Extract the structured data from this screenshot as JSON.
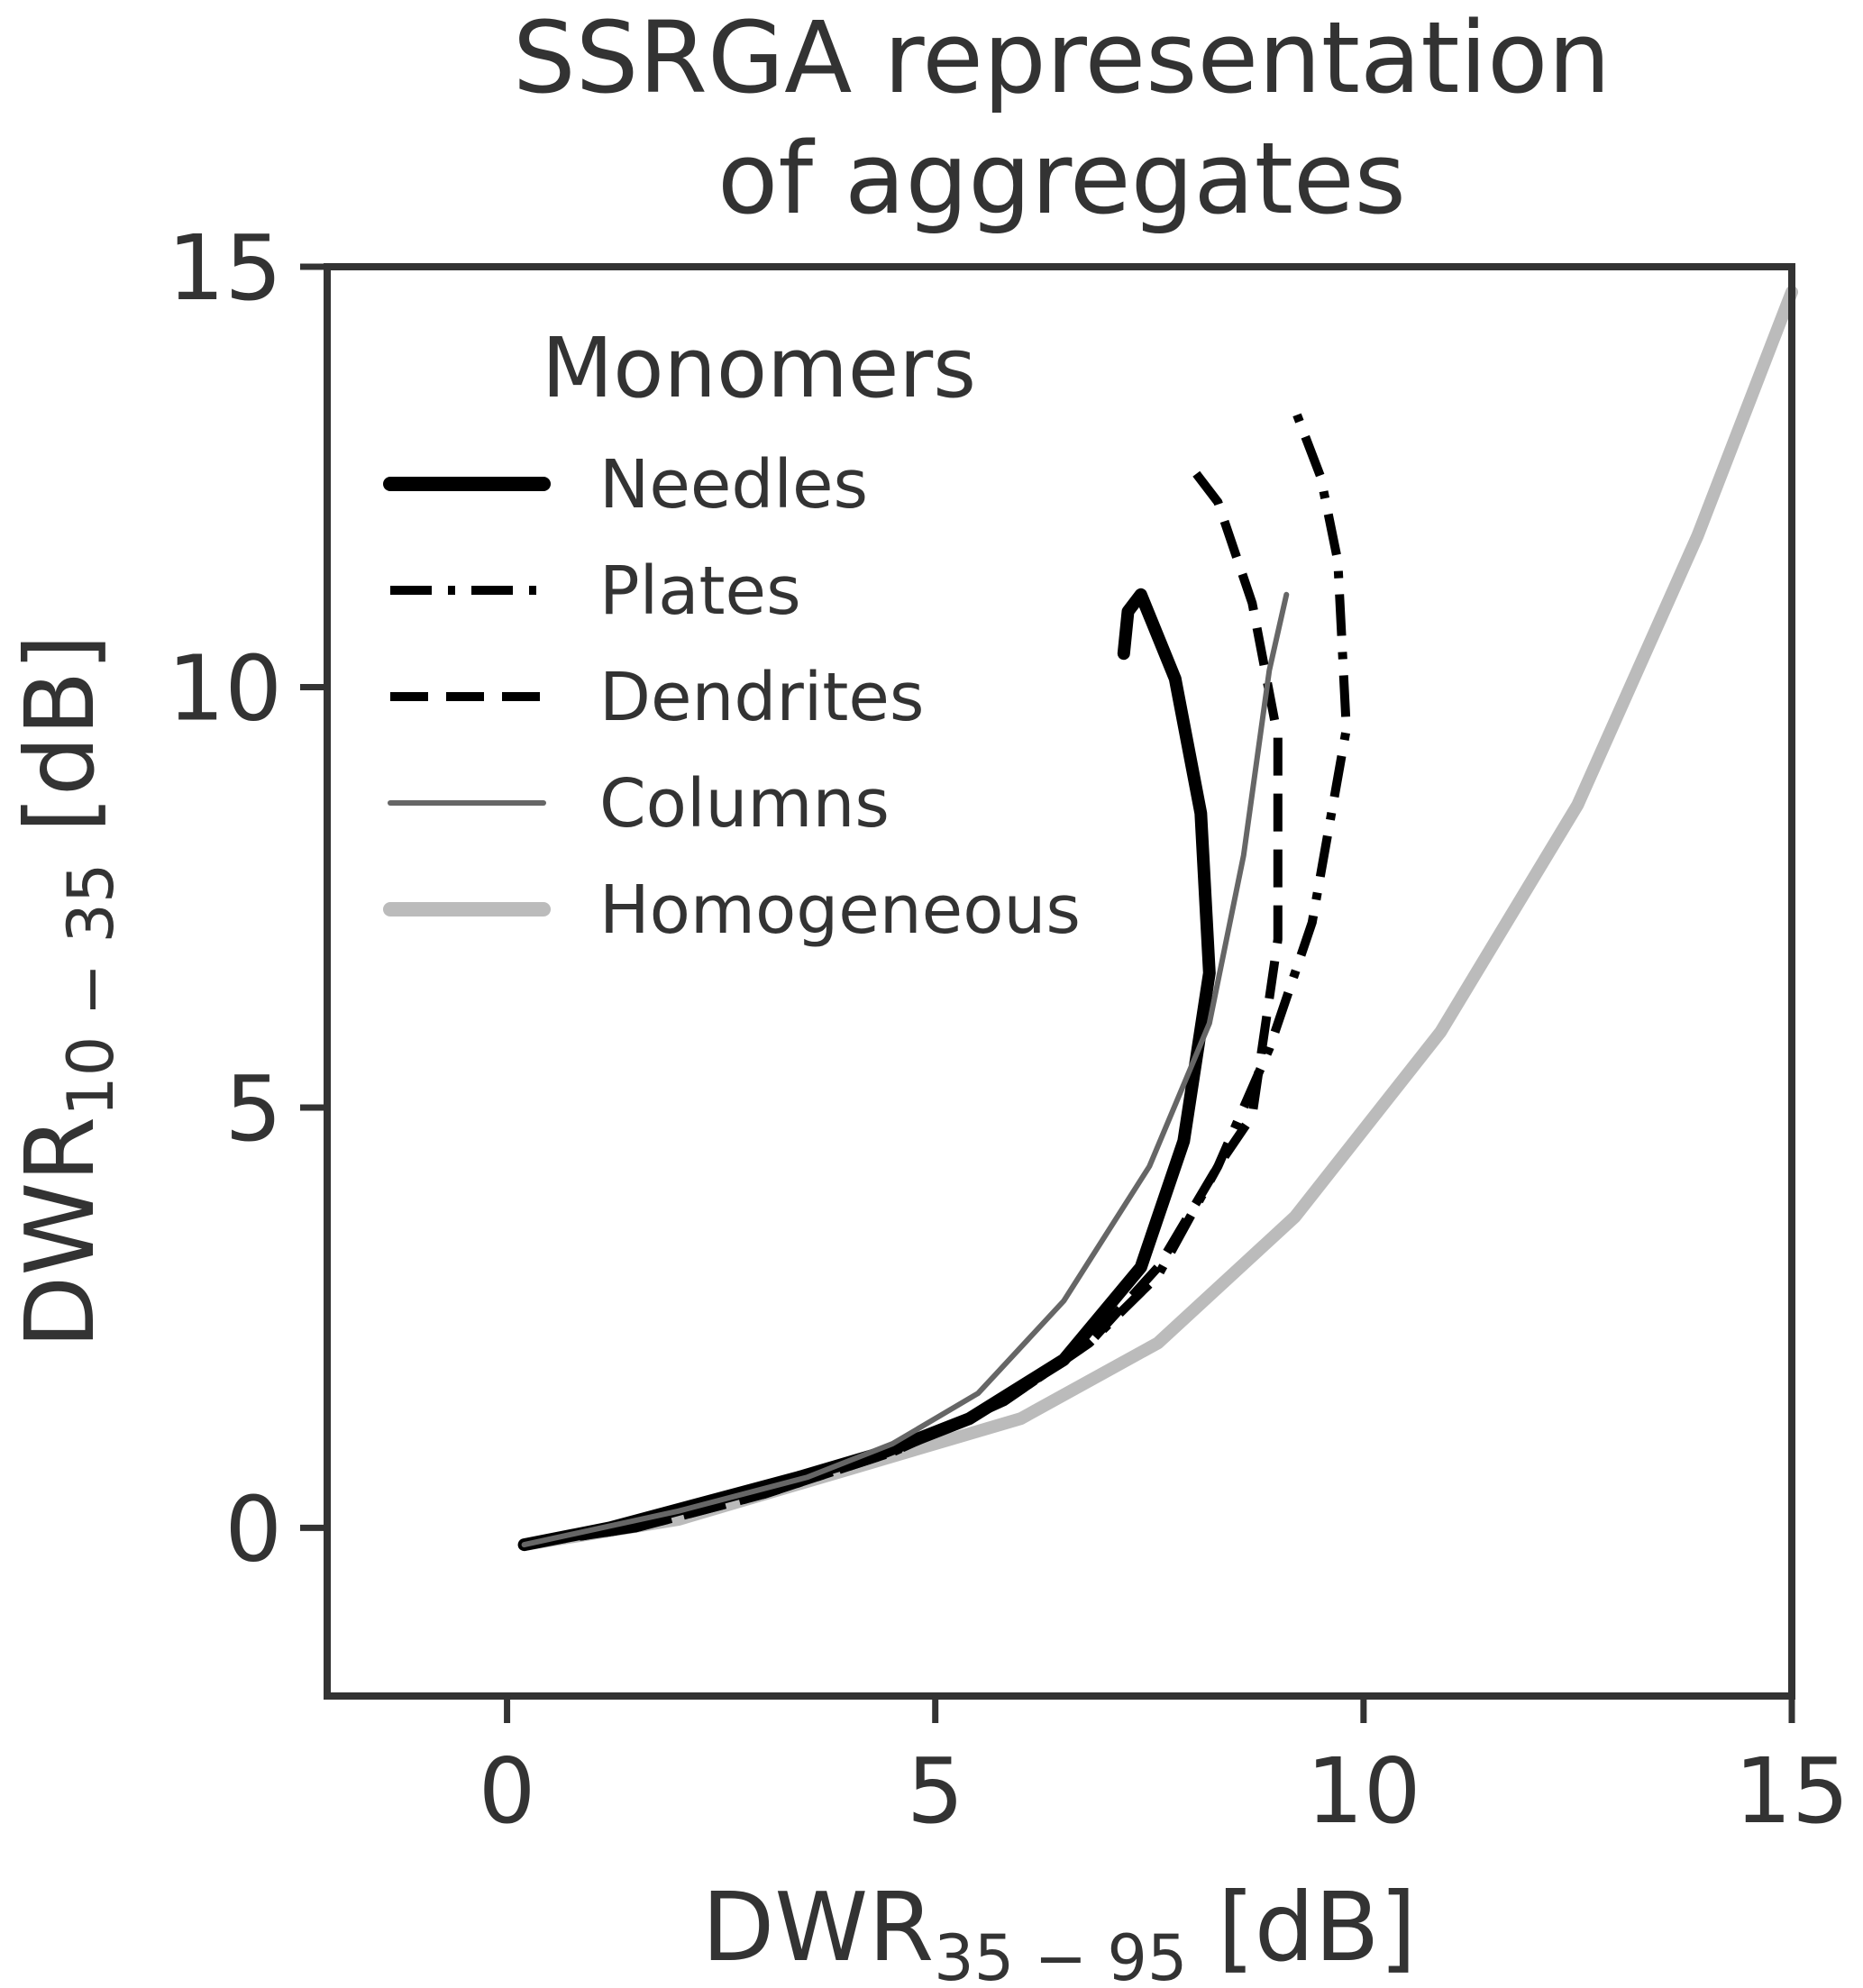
{
  "chart_data": {
    "type": "line",
    "title_lines": [
      "SSRGA representation",
      "of aggregates"
    ],
    "xlabel": {
      "main": "DWR",
      "sub": "35 − 95",
      "unit": " [dB]"
    },
    "ylabel": {
      "main": "DWR",
      "sub": "10 − 35",
      "unit": " [dB]"
    },
    "xlim": [
      -2.1,
      15
    ],
    "ylim": [
      -2,
      15
    ],
    "xticks": [
      0,
      5,
      10,
      15
    ],
    "xtick_labels": [
      "0",
      "5",
      "10",
      "15"
    ],
    "yticks": [
      0,
      5,
      10,
      15
    ],
    "ytick_labels": [
      "0",
      "5",
      "10",
      "15"
    ],
    "grid": false,
    "legend": {
      "title": "Monomers",
      "placement": "upper-left"
    },
    "series": [
      {
        "name": "Needles",
        "color": "#000000",
        "style": "solid-thick",
        "x": [
          0.2,
          1.2,
          2.3,
          3.4,
          4.4,
          5.4,
          6.5,
          7.4,
          7.9,
          8.2,
          8.1,
          7.8,
          7.4,
          7.25,
          7.2
        ],
        "y": [
          -0.2,
          0.0,
          0.3,
          0.6,
          0.9,
          1.3,
          2.0,
          3.1,
          4.6,
          6.6,
          8.5,
          10.1,
          11.1,
          10.9,
          10.4
        ]
      },
      {
        "name": "Plates",
        "color": "#000000",
        "style": "dash-dot",
        "x": [
          0.2,
          1.5,
          3.0,
          4.5,
          5.8,
          6.8,
          7.6,
          8.3,
          8.9,
          9.4,
          9.8,
          9.7,
          9.5,
          9.2
        ],
        "y": [
          -0.2,
          0.0,
          0.4,
          0.9,
          1.5,
          2.2,
          3.0,
          4.3,
          5.7,
          7.2,
          9.5,
          11.5,
          12.5,
          13.3
        ]
      },
      {
        "name": "Dendrites",
        "color": "#000000",
        "style": "dashed",
        "x": [
          0.2,
          1.5,
          3.0,
          4.5,
          5.8,
          6.8,
          7.6,
          8.3,
          8.7,
          9.0,
          9.0,
          8.7,
          8.3,
          8.0
        ],
        "y": [
          -0.2,
          0.0,
          0.4,
          0.9,
          1.5,
          2.2,
          3.1,
          4.3,
          4.9,
          7.0,
          9.4,
          11.0,
          12.2,
          12.6
        ]
      },
      {
        "name": "Columns",
        "color": "#666666",
        "style": "solid-thin",
        "x": [
          0.2,
          2.0,
          3.5,
          4.5,
          5.5,
          6.5,
          7.5,
          8.2,
          8.6,
          8.9,
          9.1
        ],
        "y": [
          -0.2,
          0.2,
          0.6,
          1.0,
          1.6,
          2.7,
          4.3,
          6.0,
          8.0,
          10.2,
          11.1
        ]
      },
      {
        "name": "Homogeneous",
        "color": "#bbbbbb",
        "style": "solid-thick",
        "x": [
          0.2,
          2.0,
          4.0,
          6.0,
          7.6,
          9.2,
          10.9,
          12.5,
          13.9,
          15.0
        ],
        "y": [
          -0.2,
          0.1,
          0.7,
          1.3,
          2.2,
          3.7,
          5.9,
          8.6,
          11.8,
          14.7
        ]
      }
    ]
  }
}
